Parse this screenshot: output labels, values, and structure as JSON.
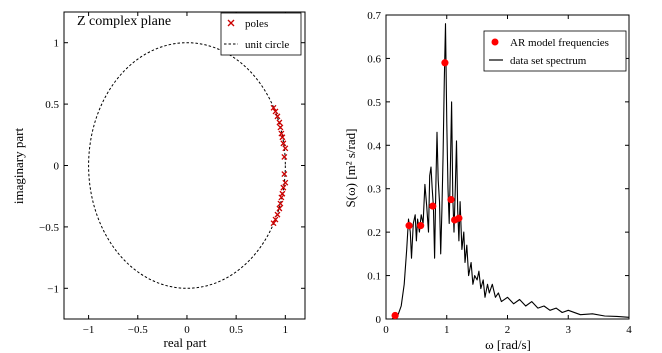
{
  "chart_data": [
    {
      "type": "scatter",
      "title": "Z complex plane",
      "xlabel": "real part",
      "ylabel": "imaginary part",
      "xlim": [
        -1.25,
        1.2
      ],
      "ylim": [
        -1.25,
        1.25
      ],
      "xticks": [
        -1,
        -0.5,
        0,
        0.5,
        1
      ],
      "xtick_labels": [
        "−1",
        "−0.5",
        "0",
        "0.5",
        "1"
      ],
      "yticks": [
        -1,
        -0.5,
        0,
        0.5,
        1
      ],
      "ytick_labels": [
        "−1",
        "−0.5",
        "0",
        "0.5",
        "1"
      ],
      "legend": {
        "position": "top-right",
        "entries": [
          "poles",
          "unit circle"
        ]
      },
      "series": [
        {
          "name": "poles",
          "marker": "x",
          "color": "#cc0000",
          "points": [
            [
              0.88,
              0.47
            ],
            [
              0.9,
              0.44
            ],
            [
              0.92,
              0.4
            ],
            [
              0.94,
              0.35
            ],
            [
              0.95,
              0.31
            ],
            [
              0.96,
              0.26
            ],
            [
              0.97,
              0.23
            ],
            [
              0.98,
              0.18
            ],
            [
              1.0,
              0.14
            ],
            [
              0.99,
              0.07
            ],
            [
              0.88,
              -0.47
            ],
            [
              0.9,
              -0.44
            ],
            [
              0.92,
              -0.4
            ],
            [
              0.94,
              -0.35
            ],
            [
              0.95,
              -0.31
            ],
            [
              0.96,
              -0.26
            ],
            [
              0.97,
              -0.23
            ],
            [
              0.98,
              -0.18
            ],
            [
              1.0,
              -0.14
            ],
            [
              0.99,
              -0.07
            ]
          ]
        },
        {
          "name": "unit circle",
          "style": "dashed",
          "color": "#000000",
          "radius": 1
        }
      ]
    },
    {
      "type": "line",
      "xlabel": "ω [rad/s]",
      "ylabel": "S(ω)  [m² s/rad]",
      "xlim": [
        0,
        4
      ],
      "ylim": [
        0,
        0.7
      ],
      "xticks": [
        0,
        1,
        2,
        3,
        4
      ],
      "xtick_labels": [
        "0",
        "1",
        "2",
        "3",
        "4"
      ],
      "yticks": [
        0,
        0.1,
        0.2,
        0.3,
        0.4,
        0.5,
        0.6,
        0.7
      ],
      "ytick_labels": [
        "0",
        "0.1",
        "0.2",
        "0.3",
        "0.4",
        "0.5",
        "0.6",
        "0.7"
      ],
      "legend": {
        "position": "top-right",
        "entries": [
          "AR model frequencies",
          "data set spectrum"
        ]
      },
      "series": [
        {
          "name": "AR model frequencies",
          "marker": "dot",
          "color": "#ff0000",
          "points": [
            [
              0.15,
              0.008
            ],
            [
              0.38,
              0.215
            ],
            [
              0.57,
              0.215
            ],
            [
              0.77,
              0.26
            ],
            [
              0.97,
              0.59
            ],
            [
              1.07,
              0.275
            ],
            [
              1.13,
              0.228
            ],
            [
              1.2,
              0.232
            ]
          ]
        },
        {
          "name": "data set spectrum",
          "color": "#000000",
          "points": [
            [
              0,
              0
            ],
            [
              0.1,
              0
            ],
            [
              0.15,
              0.005
            ],
            [
              0.2,
              0.01
            ],
            [
              0.25,
              0.03
            ],
            [
              0.3,
              0.08
            ],
            [
              0.34,
              0.16
            ],
            [
              0.37,
              0.23
            ],
            [
              0.4,
              0.2
            ],
            [
              0.42,
              0.14
            ],
            [
              0.45,
              0.22
            ],
            [
              0.48,
              0.24
            ],
            [
              0.5,
              0.18
            ],
            [
              0.52,
              0.23
            ],
            [
              0.55,
              0.2
            ],
            [
              0.58,
              0.24
            ],
            [
              0.61,
              0.22
            ],
            [
              0.64,
              0.31
            ],
            [
              0.67,
              0.26
            ],
            [
              0.7,
              0.2
            ],
            [
              0.72,
              0.33
            ],
            [
              0.74,
              0.35
            ],
            [
              0.76,
              0.3
            ],
            [
              0.78,
              0.26
            ],
            [
              0.8,
              0.14
            ],
            [
              0.82,
              0.3
            ],
            [
              0.84,
              0.43
            ],
            [
              0.86,
              0.32
            ],
            [
              0.88,
              0.27
            ],
            [
              0.9,
              0.15
            ],
            [
              0.92,
              0.25
            ],
            [
              0.94,
              0.38
            ],
            [
              0.96,
              0.55
            ],
            [
              0.98,
              0.68
            ],
            [
              1.0,
              0.45
            ],
            [
              1.02,
              0.3
            ],
            [
              1.04,
              0.22
            ],
            [
              1.06,
              0.35
            ],
            [
              1.08,
              0.5
            ],
            [
              1.1,
              0.28
            ],
            [
              1.12,
              0.2
            ],
            [
              1.14,
              0.3
            ],
            [
              1.16,
              0.41
            ],
            [
              1.18,
              0.25
            ],
            [
              1.2,
              0.18
            ],
            [
              1.22,
              0.27
            ],
            [
              1.25,
              0.16
            ],
            [
              1.28,
              0.2
            ],
            [
              1.3,
              0.13
            ],
            [
              1.33,
              0.17
            ],
            [
              1.36,
              0.1
            ],
            [
              1.4,
              0.13
            ],
            [
              1.43,
              0.08
            ],
            [
              1.46,
              0.1
            ],
            [
              1.5,
              0.09
            ],
            [
              1.53,
              0.11
            ],
            [
              1.56,
              0.07
            ],
            [
              1.6,
              0.09
            ],
            [
              1.63,
              0.05
            ],
            [
              1.67,
              0.08
            ],
            [
              1.7,
              0.06
            ],
            [
              1.75,
              0.08
            ],
            [
              1.8,
              0.05
            ],
            [
              1.85,
              0.06
            ],
            [
              1.9,
              0.04
            ],
            [
              2.0,
              0.05
            ],
            [
              2.1,
              0.035
            ],
            [
              2.2,
              0.045
            ],
            [
              2.3,
              0.03
            ],
            [
              2.4,
              0.04
            ],
            [
              2.5,
              0.025
            ],
            [
              2.6,
              0.03
            ],
            [
              2.7,
              0.02
            ],
            [
              2.8,
              0.025
            ],
            [
              2.9,
              0.015
            ],
            [
              3.0,
              0.02
            ],
            [
              3.2,
              0.01
            ],
            [
              3.4,
              0.012
            ],
            [
              3.6,
              0.007
            ],
            [
              3.8,
              0.006
            ],
            [
              4.0,
              0.004
            ]
          ]
        }
      ]
    }
  ]
}
